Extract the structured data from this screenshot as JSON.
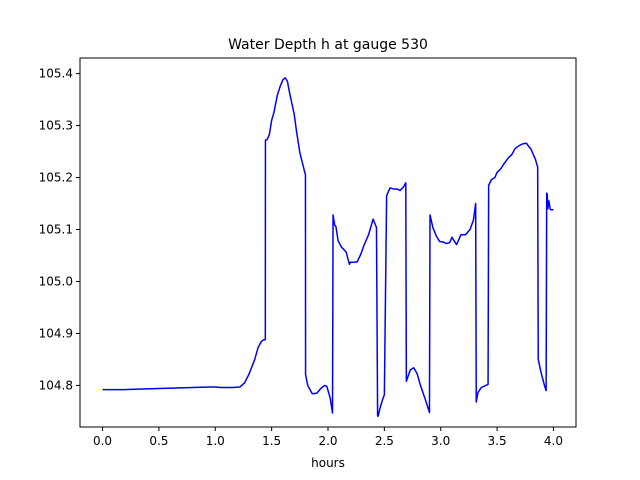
{
  "chart_data": {
    "type": "line",
    "title": "Water Depth h at gauge 530",
    "xlabel": "hours",
    "ylabel": "",
    "xlim": [
      -0.2,
      4.2
    ],
    "ylim": [
      104.72,
      105.43
    ],
    "x_ticks": [
      0.0,
      0.5,
      1.0,
      1.5,
      2.0,
      2.5,
      3.0,
      3.5,
      4.0
    ],
    "x_tick_labels": [
      "0.0",
      "0.5",
      "1.0",
      "1.5",
      "2.0",
      "2.5",
      "3.0",
      "3.5",
      "4.0"
    ],
    "y_ticks": [
      104.8,
      104.9,
      105.0,
      105.1,
      105.2,
      105.3,
      105.4
    ],
    "y_tick_labels": [
      "104.8",
      "104.9",
      "105.0",
      "105.1",
      "105.2",
      "105.3",
      "105.4"
    ],
    "grid": false,
    "series": [
      {
        "color": "#0000ff",
        "x": [
          0.0,
          0.2,
          0.5,
          0.8,
          0.95,
          1.0,
          1.05,
          1.15,
          1.22,
          1.26,
          1.3,
          1.35,
          1.38,
          1.41,
          1.43,
          1.444,
          1.445,
          1.46,
          1.48,
          1.5,
          1.52,
          1.55,
          1.58,
          1.6,
          1.62,
          1.64,
          1.66,
          1.68,
          1.7,
          1.72,
          1.75,
          1.78,
          1.8,
          1.801,
          1.82,
          1.86,
          1.9,
          1.94,
          1.97,
          1.99,
          2.02,
          2.04,
          2.045,
          2.06,
          2.07,
          2.09,
          2.12,
          2.16,
          2.19,
          2.2,
          2.23,
          2.26,
          2.29,
          2.32,
          2.36,
          2.4,
          2.43,
          2.44,
          2.445,
          2.46,
          2.48,
          2.5,
          2.52,
          2.55,
          2.58,
          2.61,
          2.64,
          2.67,
          2.69,
          2.695,
          2.73,
          2.76,
          2.79,
          2.82,
          2.86,
          2.9,
          2.905,
          2.93,
          2.96,
          2.99,
          3.02,
          3.05,
          3.08,
          3.1,
          3.14,
          3.18,
          3.22,
          3.26,
          3.29,
          3.31,
          3.315,
          3.33,
          3.36,
          3.4,
          3.42,
          3.425,
          3.45,
          3.48,
          3.5,
          3.53,
          3.56,
          3.6,
          3.63,
          3.66,
          3.7,
          3.73,
          3.76,
          3.78,
          3.8,
          3.82,
          3.84,
          3.86,
          3.865,
          3.89,
          3.92,
          3.935,
          3.94,
          3.945,
          3.95,
          3.96,
          3.97,
          3.975,
          4.0
        ],
        "y": [
          104.792,
          104.792,
          104.794,
          104.796,
          104.797,
          104.797,
          104.796,
          104.796,
          104.797,
          104.805,
          104.822,
          104.85,
          104.873,
          104.885,
          104.888,
          104.888,
          105.272,
          105.273,
          105.283,
          105.31,
          105.325,
          105.358,
          105.378,
          105.388,
          105.392,
          105.385,
          105.362,
          105.342,
          105.322,
          105.29,
          105.248,
          105.222,
          105.205,
          104.821,
          104.8,
          104.784,
          104.785,
          104.795,
          104.8,
          104.798,
          104.775,
          104.747,
          105.128,
          105.108,
          105.106,
          105.078,
          105.066,
          105.057,
          105.033,
          105.037,
          105.037,
          105.038,
          105.052,
          105.07,
          105.09,
          105.12,
          105.104,
          104.741,
          104.741,
          104.755,
          104.77,
          104.782,
          105.165,
          105.18,
          105.178,
          105.178,
          105.175,
          105.182,
          105.19,
          104.808,
          104.83,
          104.834,
          104.823,
          104.8,
          104.775,
          104.748,
          105.128,
          105.104,
          105.088,
          105.077,
          105.076,
          105.073,
          105.075,
          105.085,
          105.071,
          105.09,
          105.09,
          105.1,
          105.118,
          105.15,
          104.768,
          104.786,
          104.796,
          104.8,
          104.802,
          105.185,
          105.196,
          105.2,
          105.21,
          105.216,
          105.226,
          105.238,
          105.244,
          105.256,
          105.262,
          105.265,
          105.266,
          105.26,
          105.255,
          105.245,
          105.235,
          105.22,
          104.85,
          104.825,
          104.8,
          104.79,
          105.17,
          105.168,
          105.14,
          105.155,
          105.14,
          105.138,
          105.138
        ]
      }
    ]
  }
}
